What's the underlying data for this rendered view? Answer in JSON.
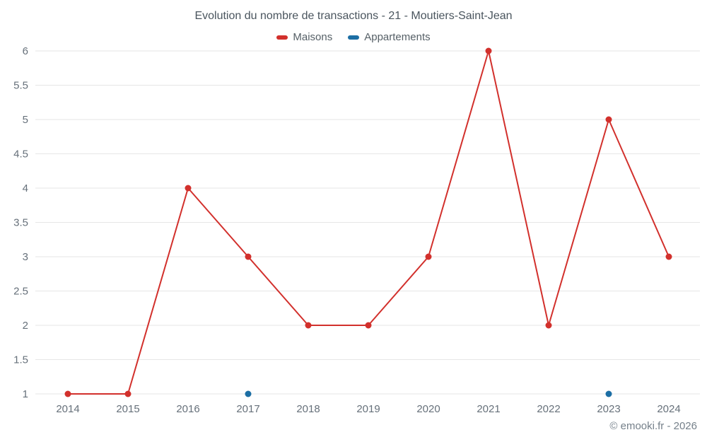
{
  "header": {
    "title": "Evolution du nombre de transactions - 21 - Moutiers-Saint-Jean"
  },
  "legend": [
    {
      "label": "Maisons",
      "color": "#d2302c"
    },
    {
      "label": "Appartements",
      "color": "#1c6ea4"
    }
  ],
  "footer": {
    "credit": "© emooki.fr - 2026"
  },
  "chart_data": {
    "type": "line",
    "title": "Evolution du nombre de transactions - 21 - Moutiers-Saint-Jean",
    "x": [
      2014,
      2015,
      2016,
      2017,
      2018,
      2019,
      2020,
      2021,
      2022,
      2023,
      2024
    ],
    "series": [
      {
        "name": "Maisons",
        "color": "#d2302c",
        "values": [
          1,
          1,
          4,
          3,
          2,
          2,
          3,
          6,
          2,
          5,
          3
        ],
        "draw_line": true
      },
      {
        "name": "Appartements",
        "color": "#1c6ea4",
        "values": [
          null,
          null,
          null,
          1,
          null,
          null,
          null,
          null,
          null,
          1,
          null
        ],
        "draw_line": false
      }
    ],
    "xlabel": "",
    "ylabel": "",
    "ylim": [
      1,
      6
    ],
    "ytick_step": 0.5,
    "grid": true,
    "legend_position": "top",
    "grid_color": "#e6e6e6",
    "tick_label_color": "#66707a"
  }
}
